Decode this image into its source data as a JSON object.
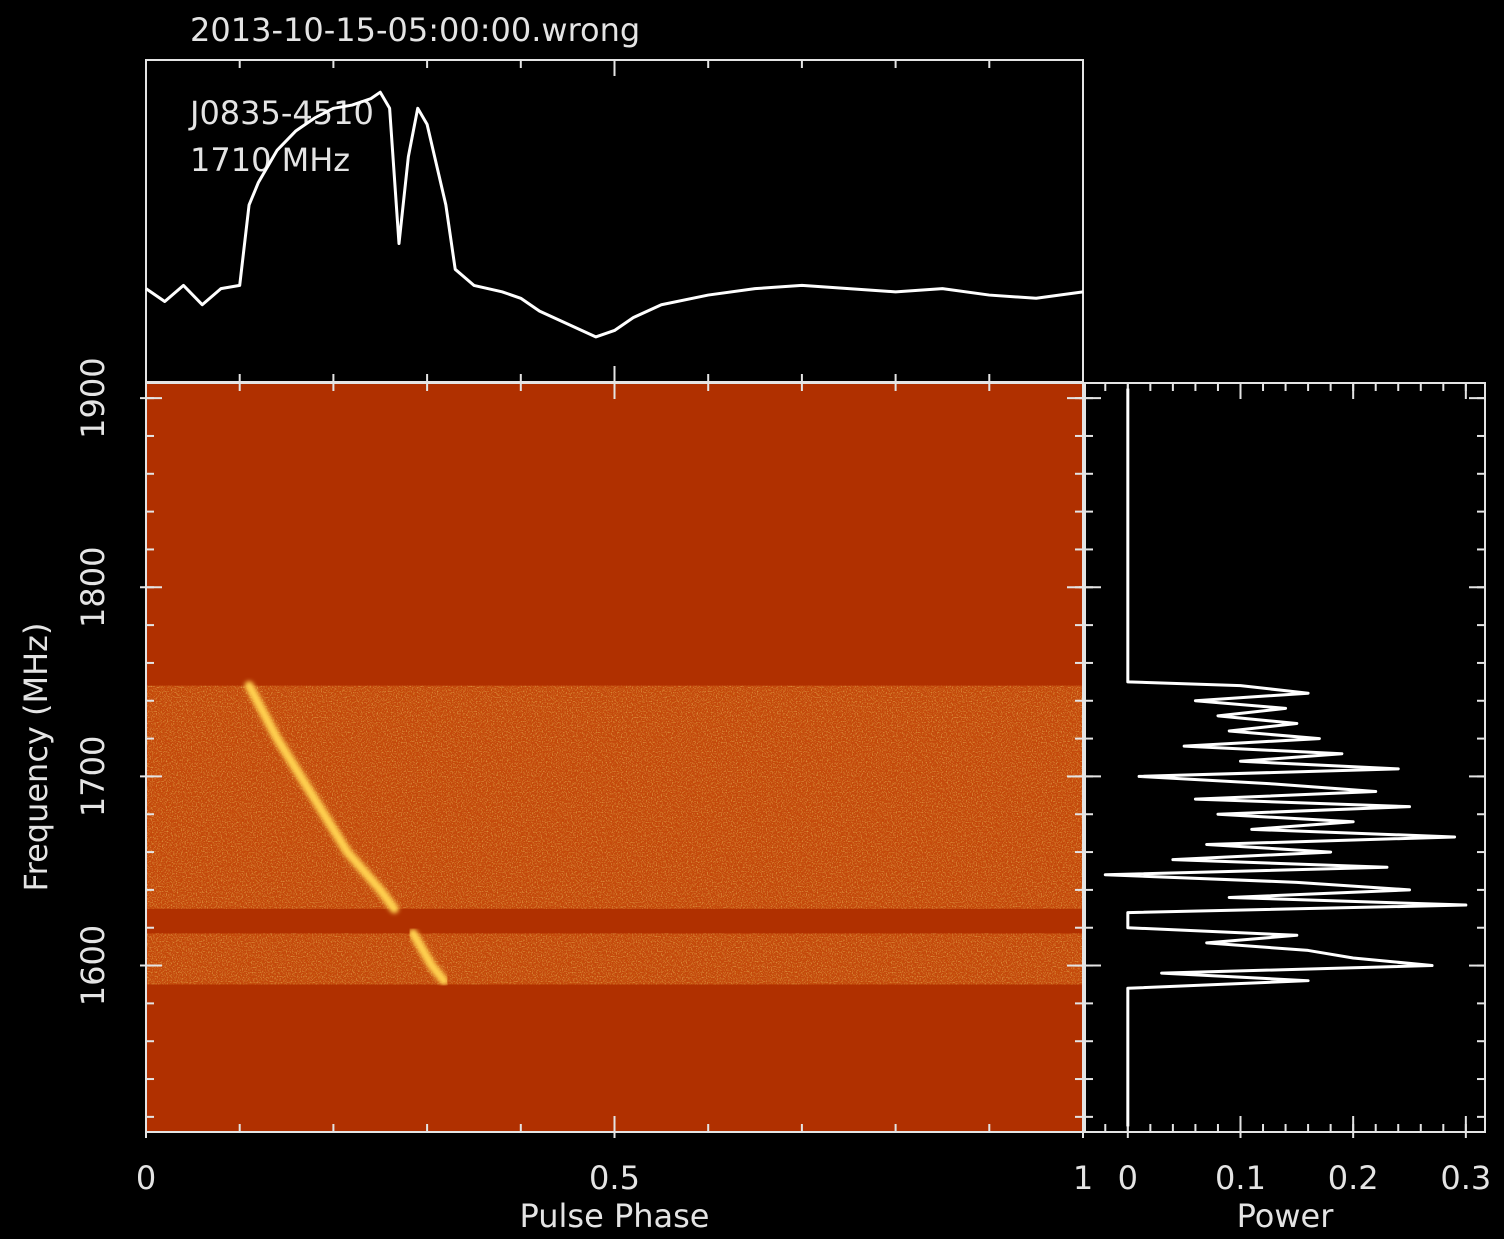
{
  "chart_data": [
    {
      "type": "line",
      "title": "2013-10-15-05:00:00.wrong",
      "annotations": [
        "J0835-4510",
        "1710 MHz"
      ],
      "x": [
        0,
        0.02,
        0.04,
        0.06,
        0.08,
        0.1,
        0.11,
        0.12,
        0.14,
        0.16,
        0.18,
        0.2,
        0.22,
        0.24,
        0.25,
        0.26,
        0.27,
        0.28,
        0.29,
        0.3,
        0.32,
        0.33,
        0.35,
        0.38,
        0.4,
        0.42,
        0.45,
        0.48,
        0.5,
        0.52,
        0.55,
        0.6,
        0.65,
        0.7,
        0.75,
        0.8,
        0.85,
        0.9,
        0.95,
        1
      ],
      "values": [
        0.29,
        0.25,
        0.3,
        0.24,
        0.29,
        0.3,
        0.55,
        0.62,
        0.72,
        0.78,
        0.82,
        0.85,
        0.86,
        0.88,
        0.9,
        0.85,
        0.43,
        0.7,
        0.85,
        0.8,
        0.55,
        0.35,
        0.3,
        0.28,
        0.26,
        0.22,
        0.18,
        0.14,
        0.16,
        0.2,
        0.24,
        0.27,
        0.29,
        0.3,
        0.29,
        0.28,
        0.29,
        0.27,
        0.26,
        0.28
      ],
      "xlim": [
        0,
        1
      ],
      "ylim": [
        0,
        1
      ],
      "color": "#ffffff"
    },
    {
      "type": "heatmap",
      "xlabel": "Pulse Phase",
      "ylabel": "Frequency (MHz)",
      "xlim": [
        0,
        1
      ],
      "xticks": [
        0,
        0.5,
        1
      ],
      "ylim": [
        1512,
        1908
      ],
      "yticks": [
        1600,
        1700,
        1800,
        1900
      ],
      "bands": [
        [
          1590,
          1617
        ],
        [
          1630,
          1748
        ]
      ],
      "background": "#b03000",
      "band_color": "#c44a0c",
      "track": {
        "x": [
          0.11,
          0.14,
          0.165,
          0.19,
          0.215,
          0.25,
          0.265,
          null,
          0.285,
          0.305,
          0.318
        ],
        "y": [
          1748,
          1720,
          1700,
          1680,
          1660,
          1640,
          1630,
          null,
          1617,
          1600,
          1592
        ]
      },
      "track_color": "#ffd050"
    },
    {
      "type": "line",
      "orientation": "horizontal",
      "xlabel": "Power",
      "xlim": [
        -0.038,
        0.317
      ],
      "xticks": [
        0,
        0.1,
        0.2,
        0.3
      ],
      "ylim": [
        1512,
        1908
      ],
      "y": [
        1905,
        1750,
        1748,
        1744,
        1740,
        1736,
        1732,
        1728,
        1724,
        1720,
        1716,
        1712,
        1708,
        1704,
        1700,
        1696,
        1692,
        1688,
        1684,
        1680,
        1676,
        1672,
        1668,
        1664,
        1660,
        1656,
        1652,
        1648,
        1644,
        1640,
        1636,
        1632,
        1628,
        1624,
        1620,
        1616,
        1612,
        1608,
        1604,
        1600,
        1596,
        1592,
        1588,
        1515
      ],
      "values": [
        0,
        0,
        0.1,
        0.16,
        0.06,
        0.14,
        0.08,
        0.15,
        0.09,
        0.17,
        0.05,
        0.19,
        0.1,
        0.24,
        0.01,
        0.13,
        0.22,
        0.06,
        0.25,
        0.08,
        0.2,
        0.11,
        0.29,
        0.07,
        0.18,
        0.04,
        0.23,
        -0.02,
        0.15,
        0.25,
        0.09,
        0.3,
        0,
        0,
        0,
        0.15,
        0.07,
        0.16,
        0.2,
        0.27,
        0.03,
        0.16,
        0,
        0
      ],
      "color": "#ffffff"
    }
  ]
}
